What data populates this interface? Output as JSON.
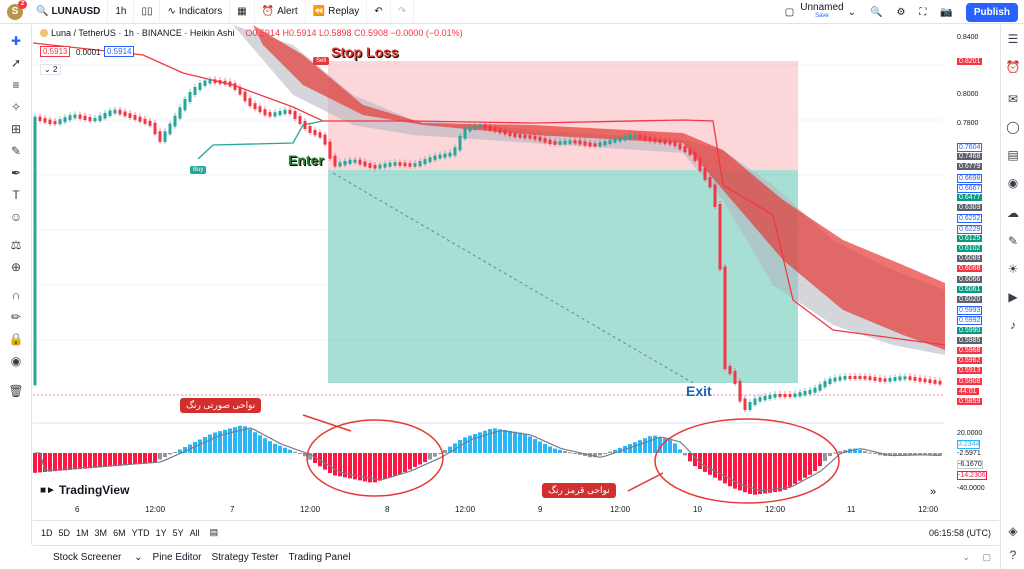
{
  "header": {
    "avatar_letter": "S",
    "avatar_badge": "2",
    "symbol": "LUNAUSD",
    "interval": "1h",
    "indicators_label": "Indicators",
    "alert_label": "Alert",
    "replay_label": "Replay",
    "layout_name": "Unnamed",
    "layout_status": "Save",
    "publish_label": "Publish"
  },
  "legend": {
    "title": "Luna / TetherUS · 1h · BINANCE · Heikin Ashi",
    "ohlc": "O0.5914 H0.5914 L0.5898 C0.5908 −0.0000 (−0.01%)",
    "bid": "0.5913",
    "spread": "0.0001",
    "ask": "0.5914",
    "collapse": "2"
  },
  "annotations": {
    "stop_loss": "Stop Loss",
    "enter": "Enter",
    "exit": "Exit",
    "sell": "Sell",
    "buy": "Buy",
    "note_positive": "نواحی صورتی رنگ",
    "note_red": "نواحی قرمز رنگ"
  },
  "brand": "TradingView",
  "price_axis": [
    "0.8400",
    "0.8201",
    "0.8000",
    "0.7800",
    "0.7604",
    "0.7468",
    "0.6779",
    "0.6698",
    "0.6667",
    "0.6477",
    "0.6303",
    "0.6252",
    "0.6229",
    "0.6125",
    "0.6102",
    "0.6089",
    "0.6068",
    "0.6066",
    "0.6061",
    "0.6020",
    "0.5993",
    "0.5992",
    "0.5990",
    "0.5985",
    "0.5968",
    "0.5962",
    "0.5913",
    "0.5908",
    "44:01",
    "0.5859"
  ],
  "osc_axis": [
    "20.0000",
    "3.2344",
    "-2.5971",
    "-6.1670",
    "-14.2306",
    "-40.0000"
  ],
  "time_axis": [
    "6",
    "12:00",
    "7",
    "12:00",
    "8",
    "12:00",
    "9",
    "12:00",
    "10",
    "12:00",
    "11",
    "12:00"
  ],
  "timeframes": [
    "1D",
    "5D",
    "1M",
    "3M",
    "6M",
    "YTD",
    "1Y",
    "5Y",
    "All"
  ],
  "clock": "06:15:58 (UTC)",
  "bottom_tabs": [
    "Stock Screener",
    "Pine Editor",
    "Strategy Tester",
    "Trading Panel"
  ],
  "colors": {
    "up": "#26a69a",
    "down": "#f23645",
    "accent": "#2962ff",
    "oscillator_up": "#29b6f6",
    "oscillator_down": "#ff1744"
  }
}
